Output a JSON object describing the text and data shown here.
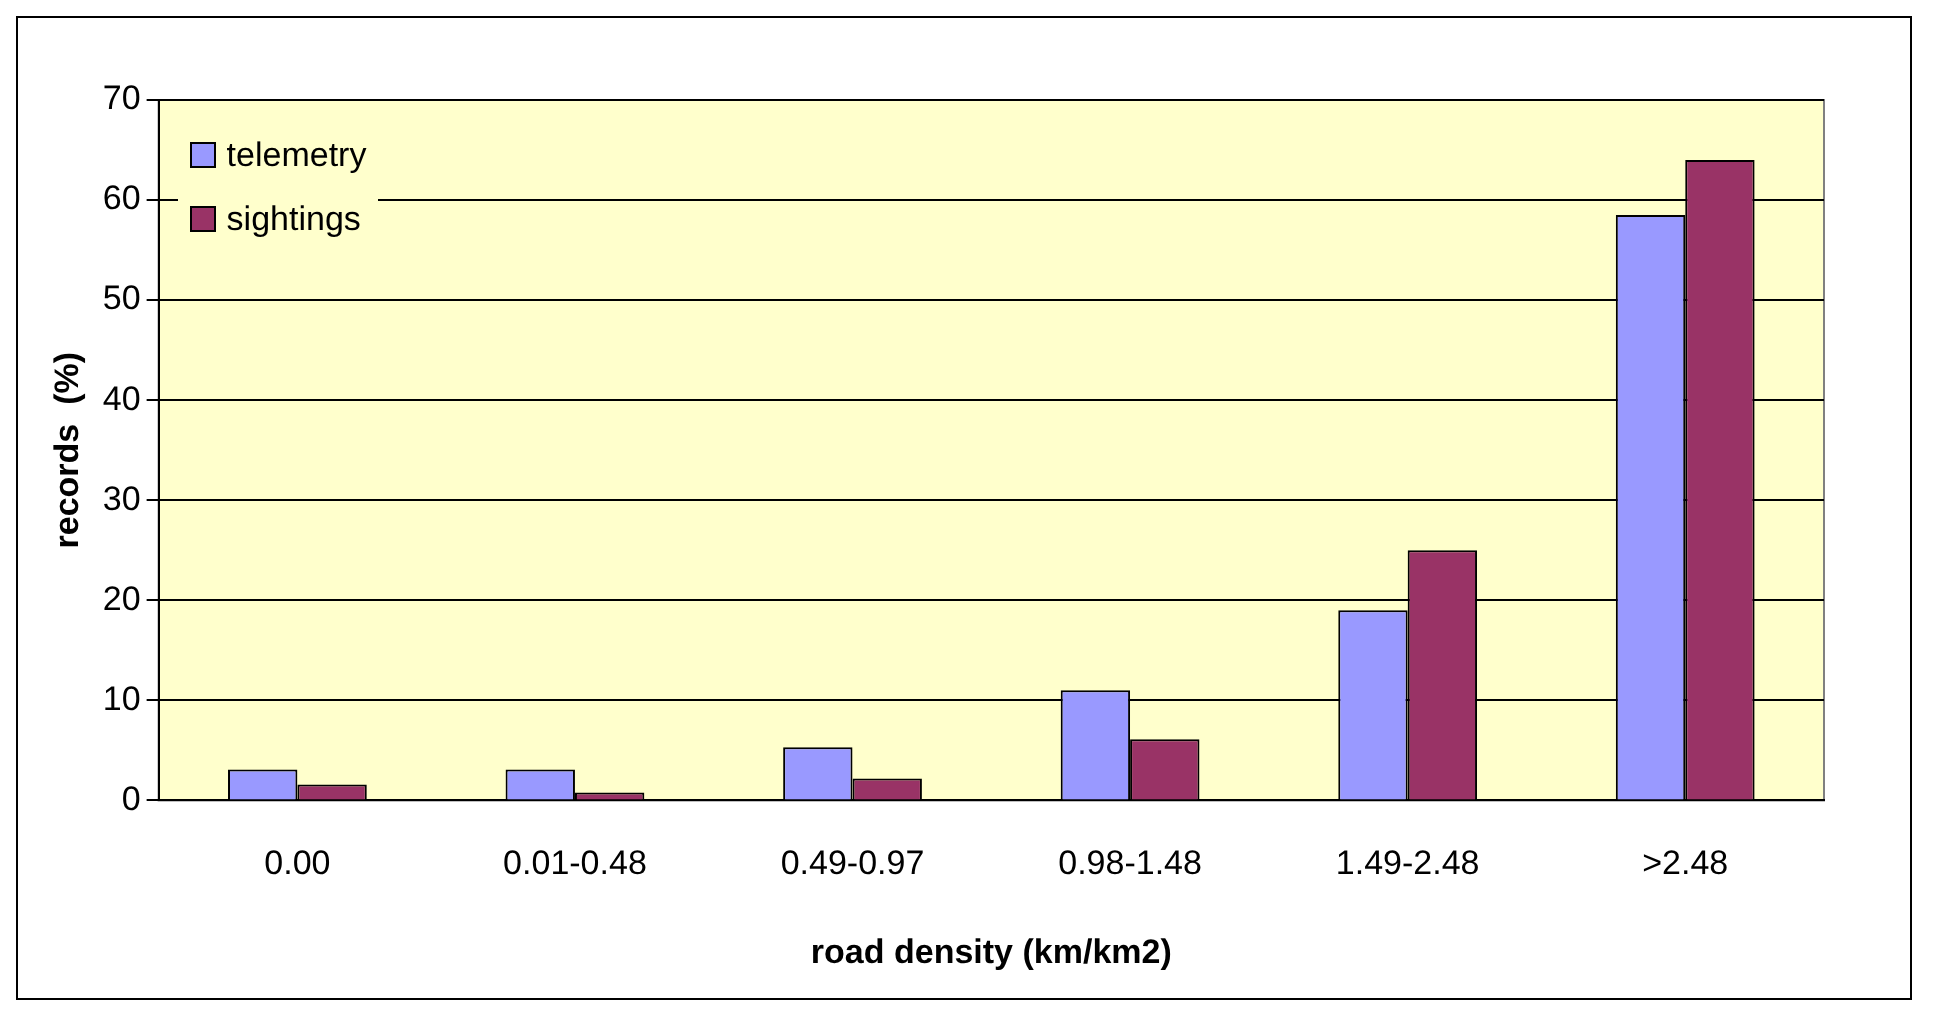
{
  "chart_data": {
    "type": "bar",
    "xlabel": "road density (km/km2)",
    "ylabel": "records  (%)",
    "categories": [
      "0.00",
      "0.01-0.48",
      "0.49-0.97",
      "0.98-1.48",
      "1.49-2.48",
      ">2.48"
    ],
    "series": [
      {
        "name": "telemetry",
        "color": "#9999ff",
        "values": [
          3.1,
          3.1,
          5.3,
          11,
          19,
          58.5
        ]
      },
      {
        "name": "sightings",
        "color": "#993366",
        "values": [
          1.6,
          0.8,
          2.2,
          6.1,
          25,
          64
        ]
      }
    ],
    "ylim": [
      0,
      70
    ],
    "yticks": [
      0,
      10,
      20,
      30,
      40,
      50,
      60,
      70
    ],
    "grid": "y",
    "legend": "top left"
  }
}
